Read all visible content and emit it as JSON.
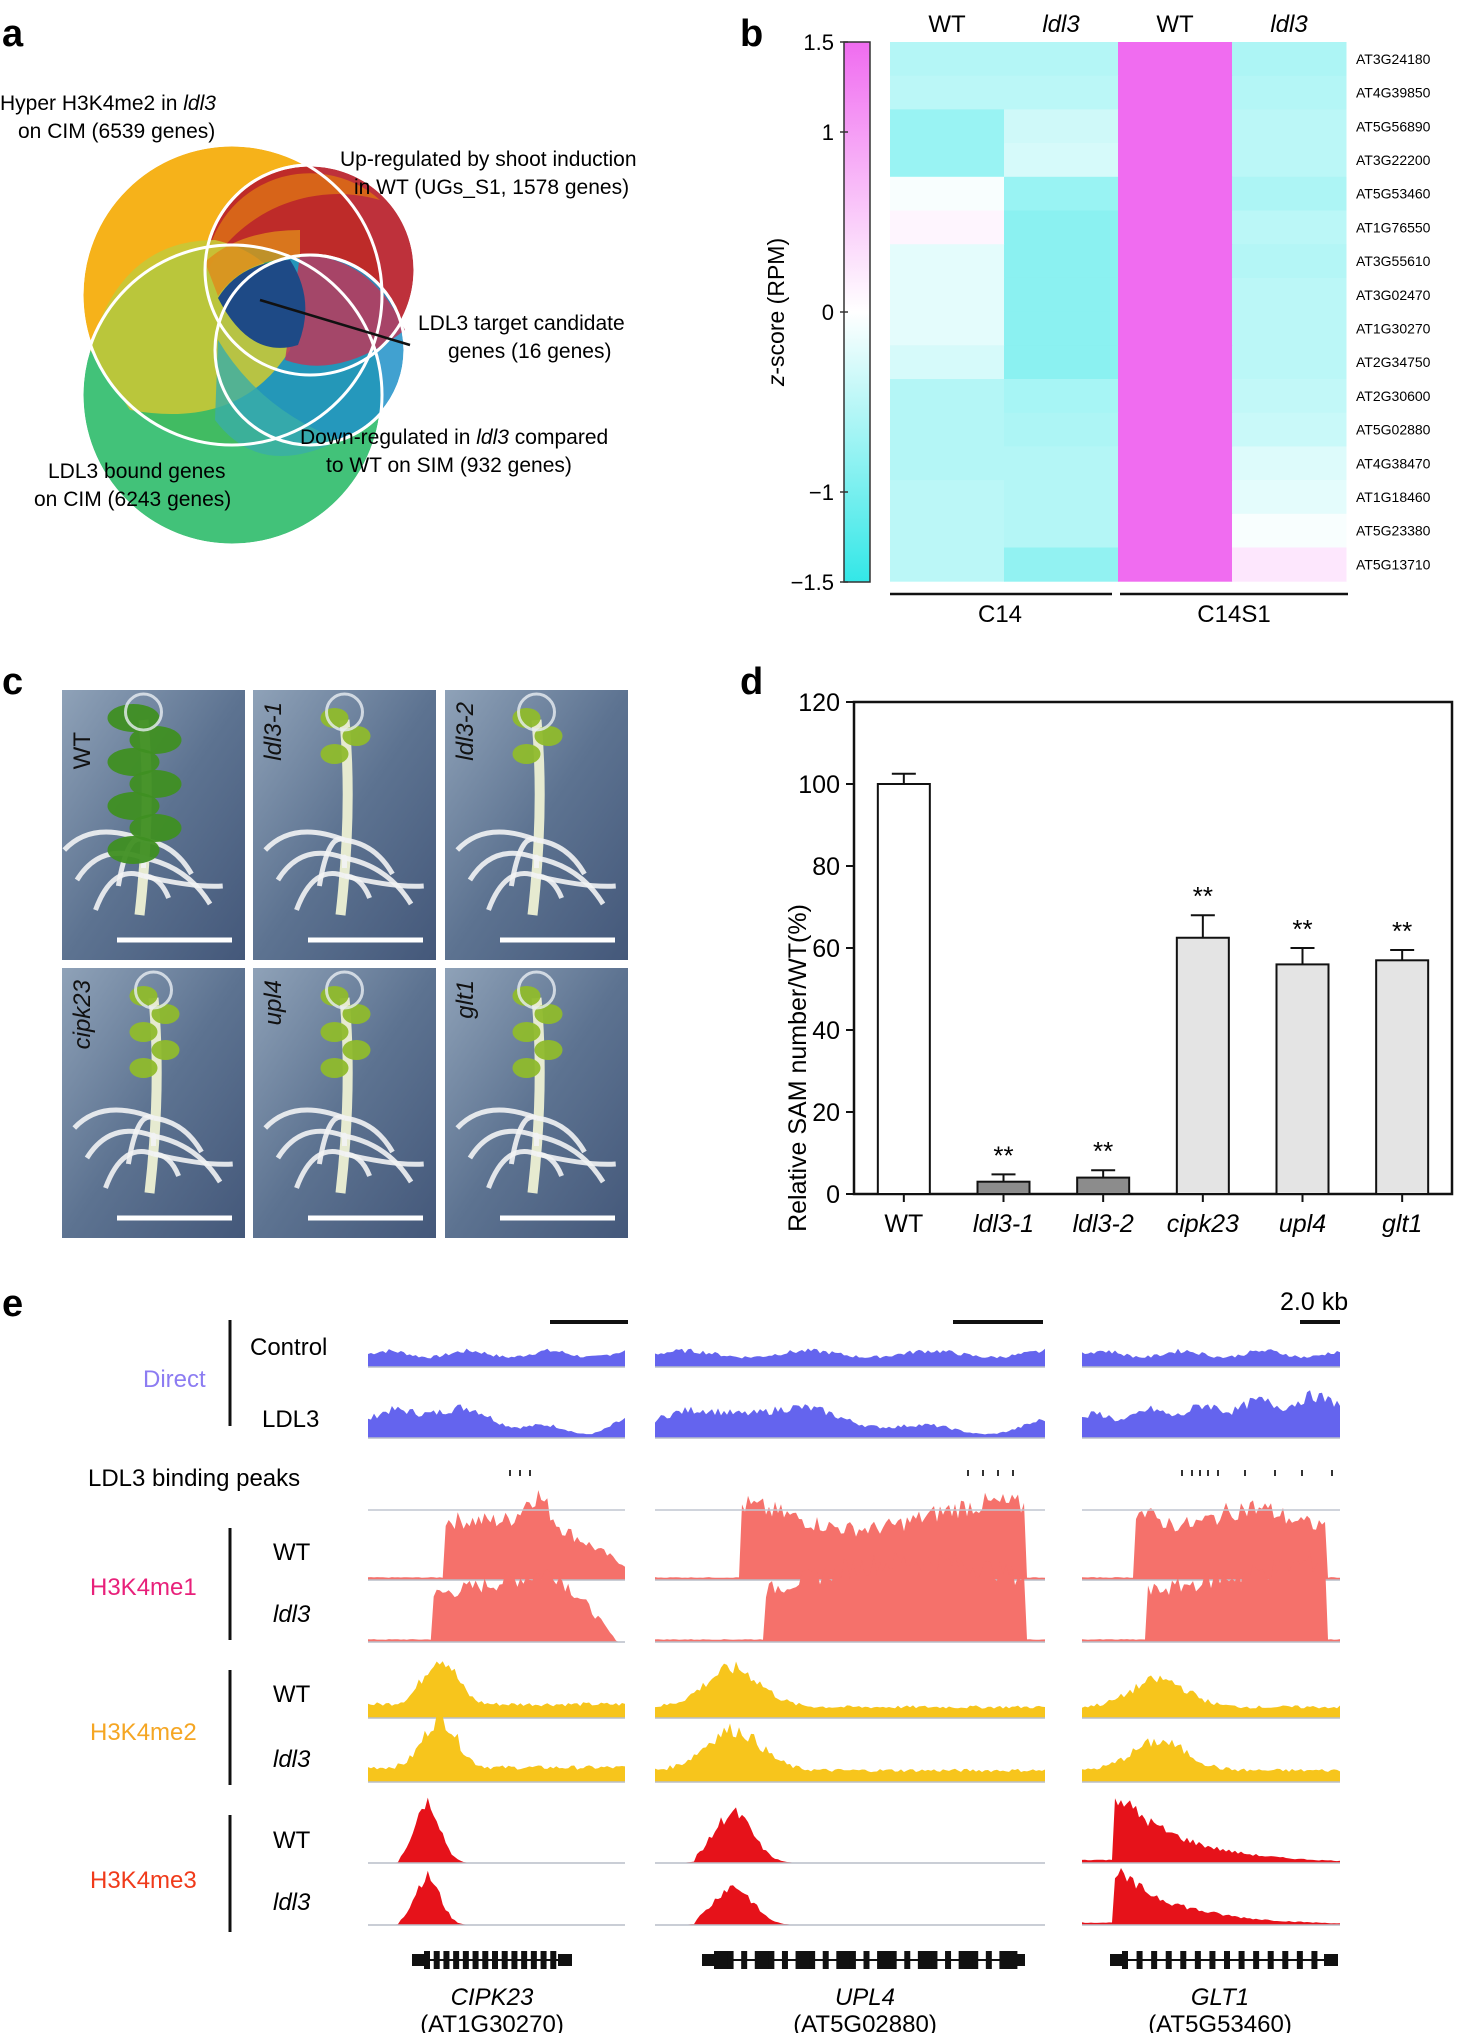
{
  "panels": {
    "a": "a",
    "b": "b",
    "c": "c",
    "d": "d",
    "e": "e"
  },
  "venn": {
    "hyper_line1": "Hyper H3K4me2 in ",
    "hyper_ital": "ldl3",
    "hyper_line2": "on CIM (6539 genes)",
    "up_line1": "Up-regulated by shoot induction",
    "up_line2": "in WT (UGs_S1, 1578 genes)",
    "target_line1": "LDL3 target candidate",
    "target_line2": "genes (16 genes)",
    "down_line1a": "Down-regulated in ",
    "down_ital": "ldl3",
    "down_line1b": " compared",
    "down_line2": "to WT on SIM (932 genes)",
    "bound_line1": "LDL3 bound genes",
    "bound_line2": "on CIM (6243 genes)",
    "colors": {
      "hyper": "#f6b21a",
      "up": "#b81f2a",
      "down": "#2090c8",
      "bound": "#2dbb6a",
      "center": "#1e4a86"
    }
  },
  "heatmap": {
    "col_labels": [
      "WT",
      "ldl3",
      "WT",
      "ldl3"
    ],
    "groups": [
      "C14",
      "C14S1"
    ],
    "genes": [
      "AT3G24180",
      "AT4G39850",
      "AT5G56890",
      "AT3G22200",
      "AT5G53460",
      "AT1G76550",
      "AT3G55610",
      "AT3G02470",
      "AT1G30270",
      "AT2G34750",
      "AT2G30600",
      "AT5G02880",
      "AT4G38470",
      "AT1G18460",
      "AT5G23380",
      "AT5G13710"
    ],
    "zscore": [
      [
        -0.55,
        -0.55,
        1.5,
        -0.6
      ],
      [
        -0.5,
        -0.5,
        1.5,
        -0.55
      ],
      [
        -0.75,
        -0.35,
        1.5,
        -0.5
      ],
      [
        -0.75,
        -0.3,
        1.5,
        -0.5
      ],
      [
        -0.05,
        -0.75,
        1.5,
        -0.6
      ],
      [
        0.1,
        -0.85,
        1.5,
        -0.5
      ],
      [
        -0.2,
        -0.85,
        1.5,
        -0.55
      ],
      [
        -0.2,
        -0.85,
        1.5,
        -0.5
      ],
      [
        -0.2,
        -0.85,
        1.5,
        -0.5
      ],
      [
        -0.3,
        -0.85,
        1.5,
        -0.5
      ],
      [
        -0.55,
        -0.65,
        1.5,
        -0.45
      ],
      [
        -0.55,
        -0.6,
        1.5,
        -0.4
      ],
      [
        -0.55,
        -0.55,
        1.5,
        -0.25
      ],
      [
        -0.5,
        -0.55,
        1.5,
        -0.2
      ],
      [
        -0.5,
        -0.55,
        1.5,
        -0.05
      ],
      [
        -0.5,
        -0.8,
        1.5,
        0.25
      ]
    ],
    "scale_ticks": [
      "1.5",
      "1",
      "0",
      "−1",
      "−1.5"
    ],
    "scale_label_a": "z",
    "scale_label_b": "-score (RPM)",
    "colors": {
      "low": "#33e7e7",
      "mid": "#ffffff",
      "high": "#f06cf0"
    }
  },
  "photos": [
    "WT",
    "ldl3-1",
    "ldl3-2",
    "cipk23",
    "upl4",
    "glt1"
  ],
  "chart_data": {
    "type": "bar",
    "categories": [
      "WT",
      "ldl3-1",
      "ldl3-2",
      "cipk23",
      "upl4",
      "glt1"
    ],
    "values": [
      100,
      3,
      4,
      62.5,
      56,
      57
    ],
    "errors": [
      2.5,
      1.8,
      1.8,
      5.5,
      4,
      2.5
    ],
    "significance": [
      "",
      "**",
      "**",
      "**",
      "**",
      "**"
    ],
    "ylabel": "Relative SAM number/WT(%)",
    "ylim": [
      0,
      120
    ],
    "yticks": [
      "0",
      "20",
      "40",
      "60",
      "80",
      "100",
      "120"
    ],
    "bar_colors": [
      "#ffffff",
      "#8c8c8c",
      "#8c8c8c",
      "#e4e4e4",
      "#e4e4e4",
      "#e4e4e4"
    ]
  },
  "tracks": {
    "scale_label": "2.0 kb",
    "direct_label": "Direct",
    "control_label": "Control",
    "ldl3_label": "LDL3",
    "peaks_label": "LDL3 binding peaks",
    "me1_label": "H3K4me1",
    "me2_label": "H3K4me2",
    "me3_label": "H3K4me3",
    "wt_label": "WT",
    "mut_label": "ldl3",
    "genes": [
      {
        "name": "CIPK23",
        "id": "(AT1G30270)"
      },
      {
        "name": "UPL4",
        "id": "(AT5G02880)"
      },
      {
        "name": "GLT1",
        "id": "(AT5G53460)"
      }
    ],
    "colors": {
      "direct": "#6464ee",
      "me1": "#f5716b",
      "me2": "#f7c51c",
      "me3": "#e6121a",
      "direct_text": "#8c7cf2",
      "me1_text": "#e8207a",
      "me2_text": "#f5a623",
      "me3_text": "#f03a1a"
    }
  }
}
